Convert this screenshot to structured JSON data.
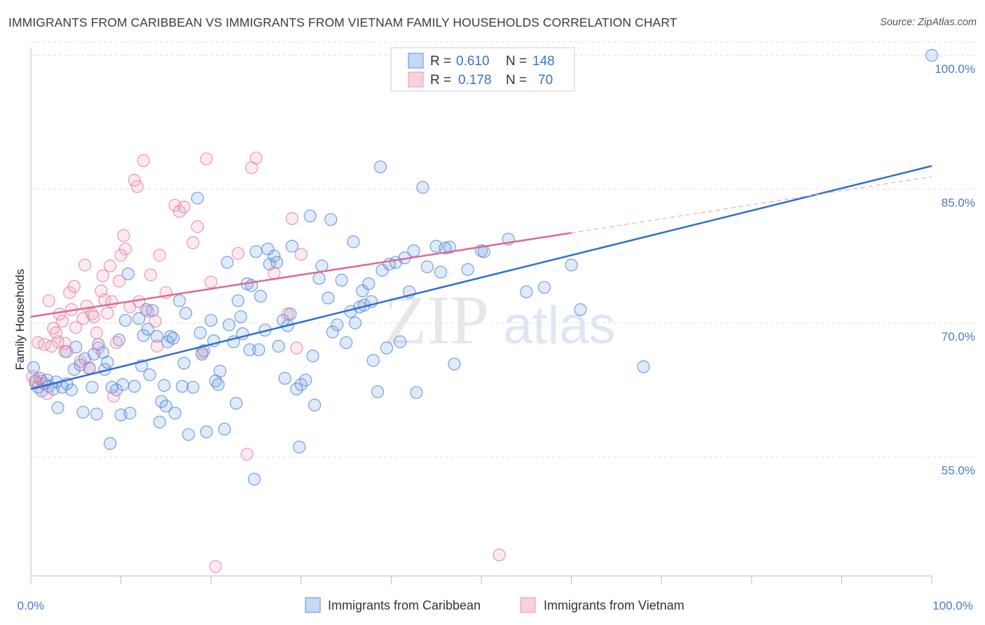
{
  "header": {
    "title": "IMMIGRANTS FROM CARIBBEAN VS IMMIGRANTS FROM VIETNAM FAMILY HOUSEHOLDS CORRELATION CHART",
    "source": "Source: ZipAtlas.com"
  },
  "watermark": {
    "zip": "ZIP",
    "atlas": "atlas"
  },
  "colors": {
    "blue": "#6d9eea",
    "blue_line": "#2f6fcc",
    "pink": "#f0a0b8",
    "pink_line": "#e06890",
    "tick_text": "#4a78c8",
    "grid": "#dddddd"
  },
  "legend": {
    "rows": [
      {
        "r_label": "R =",
        "r_value": "0.610",
        "n_label": "N =",
        "n_value": "148"
      },
      {
        "r_label": "R =",
        "r_value": "0.178",
        "n_label": "N =",
        "n_value": "70"
      }
    ]
  },
  "chart_data": {
    "type": "scatter",
    "ylabel": "Family Households",
    "xlabel": "",
    "x_tick_labels": [
      "0.0%",
      "100.0%"
    ],
    "y_tick_labels": [
      "55.0%",
      "70.0%",
      "85.0%",
      "100.0%"
    ],
    "y_ticks": [
      55,
      70,
      85,
      100
    ],
    "xlim": [
      0,
      100
    ],
    "ylim": [
      40,
      102
    ],
    "grid": true,
    "legend_position": "top-center",
    "series": [
      {
        "name": "Immigrants from Caribbean",
        "color": "#6d9eea",
        "trend": {
          "x": [
            0,
            100
          ],
          "y": [
            62.6,
            87.6
          ]
        },
        "points": [
          [
            0.3,
            65.0
          ],
          [
            0.5,
            63.5
          ],
          [
            0.8,
            62.8
          ],
          [
            1.0,
            63.8
          ],
          [
            1.2,
            62.4
          ],
          [
            1.5,
            63.2
          ],
          [
            1.8,
            63.6
          ],
          [
            2.0,
            62.9
          ],
          [
            2.5,
            62.6
          ],
          [
            2.8,
            63.4
          ],
          [
            3.0,
            60.5
          ],
          [
            3.5,
            62.8
          ],
          [
            3.8,
            66.8
          ],
          [
            4.0,
            63.2
          ],
          [
            4.5,
            62.5
          ],
          [
            4.8,
            64.8
          ],
          [
            5.0,
            67.3
          ],
          [
            5.5,
            65.3
          ],
          [
            5.8,
            60.0
          ],
          [
            6.0,
            66.0
          ],
          [
            6.5,
            64.9
          ],
          [
            6.8,
            62.8
          ],
          [
            7.0,
            66.5
          ],
          [
            7.3,
            59.8
          ],
          [
            7.5,
            67.6
          ],
          [
            8.0,
            66.7
          ],
          [
            8.2,
            64.8
          ],
          [
            8.5,
            65.6
          ],
          [
            8.8,
            56.5
          ],
          [
            9.0,
            62.8
          ],
          [
            9.5,
            62.5
          ],
          [
            9.8,
            68.1
          ],
          [
            10.0,
            59.7
          ],
          [
            10.2,
            63.1
          ],
          [
            10.5,
            70.3
          ],
          [
            10.8,
            75.5
          ],
          [
            11.0,
            59.9
          ],
          [
            11.5,
            62.9
          ],
          [
            12.0,
            70.5
          ],
          [
            12.3,
            65.2
          ],
          [
            12.5,
            68.6
          ],
          [
            12.8,
            71.5
          ],
          [
            13.0,
            69.3
          ],
          [
            13.2,
            64.2
          ],
          [
            13.5,
            71.4
          ],
          [
            14.0,
            68.5
          ],
          [
            14.3,
            58.9
          ],
          [
            14.5,
            61.2
          ],
          [
            14.8,
            63.0
          ],
          [
            15.0,
            60.7
          ],
          [
            15.2,
            67.9
          ],
          [
            15.5,
            68.5
          ],
          [
            15.8,
            68.3
          ],
          [
            16.0,
            59.9
          ],
          [
            16.5,
            72.5
          ],
          [
            16.8,
            62.9
          ],
          [
            17.0,
            65.5
          ],
          [
            17.2,
            71.1
          ],
          [
            17.5,
            57.5
          ],
          [
            18.0,
            62.8
          ],
          [
            18.5,
            84.0
          ],
          [
            18.8,
            68.9
          ],
          [
            19.0,
            66.5
          ],
          [
            19.2,
            66.9
          ],
          [
            19.5,
            57.8
          ],
          [
            20.0,
            70.3
          ],
          [
            20.3,
            68.0
          ],
          [
            20.5,
            63.5
          ],
          [
            20.8,
            63.1
          ],
          [
            21.0,
            64.6
          ],
          [
            21.5,
            58.1
          ],
          [
            21.8,
            76.8
          ],
          [
            22.0,
            69.8
          ],
          [
            22.5,
            67.9
          ],
          [
            22.8,
            61.0
          ],
          [
            23.0,
            72.5
          ],
          [
            23.3,
            70.7
          ],
          [
            23.5,
            68.8
          ],
          [
            24.0,
            74.4
          ],
          [
            24.3,
            67.0
          ],
          [
            24.5,
            74.2
          ],
          [
            24.8,
            52.5
          ],
          [
            25.0,
            78.0
          ],
          [
            25.3,
            67.0
          ],
          [
            25.5,
            73.0
          ],
          [
            26.0,
            69.2
          ],
          [
            26.3,
            78.3
          ],
          [
            26.5,
            76.6
          ],
          [
            27.0,
            77.5
          ],
          [
            27.3,
            76.8
          ],
          [
            27.5,
            67.4
          ],
          [
            28.0,
            70.3
          ],
          [
            28.2,
            63.8
          ],
          [
            28.5,
            69.7
          ],
          [
            28.8,
            71.0
          ],
          [
            29.0,
            78.6
          ],
          [
            29.5,
            62.6
          ],
          [
            29.8,
            56.1
          ],
          [
            30.0,
            63.1
          ],
          [
            30.5,
            63.6
          ],
          [
            31.0,
            82.0
          ],
          [
            31.3,
            66.3
          ],
          [
            31.5,
            60.8
          ],
          [
            32.0,
            75.0
          ],
          [
            32.3,
            76.4
          ],
          [
            33.0,
            72.8
          ],
          [
            33.3,
            81.6
          ],
          [
            33.5,
            69.0
          ],
          [
            34.0,
            69.8
          ],
          [
            34.5,
            74.8
          ],
          [
            35.0,
            67.8
          ],
          [
            35.5,
            71.3
          ],
          [
            35.8,
            79.1
          ],
          [
            36.0,
            70.0
          ],
          [
            36.5,
            71.8
          ],
          [
            36.8,
            73.6
          ],
          [
            37.0,
            72.0
          ],
          [
            37.5,
            74.4
          ],
          [
            37.8,
            72.4
          ],
          [
            38.0,
            65.8
          ],
          [
            38.5,
            62.3
          ],
          [
            38.8,
            87.5
          ],
          [
            39.0,
            75.9
          ],
          [
            39.5,
            67.2
          ],
          [
            39.8,
            76.6
          ],
          [
            40.5,
            76.8
          ],
          [
            41.0,
            67.9
          ],
          [
            41.5,
            77.3
          ],
          [
            42.0,
            73.5
          ],
          [
            42.5,
            78.1
          ],
          [
            42.8,
            62.2
          ],
          [
            43.5,
            85.2
          ],
          [
            44.0,
            76.3
          ],
          [
            45.0,
            78.6
          ],
          [
            45.5,
            75.7
          ],
          [
            46.0,
            78.4
          ],
          [
            46.5,
            78.5
          ],
          [
            47.0,
            65.4
          ],
          [
            48.5,
            76.0
          ],
          [
            50.0,
            78.1
          ],
          [
            50.3,
            78.0
          ],
          [
            53.0,
            79.4
          ],
          [
            55.0,
            73.5
          ],
          [
            57.0,
            74.0
          ],
          [
            60.0,
            76.5
          ],
          [
            61.0,
            71.5
          ],
          [
            68.0,
            65.1
          ],
          [
            100.0,
            100.0
          ]
        ]
      },
      {
        "name": "Immigrants from Vietnam",
        "color": "#f0a0b8",
        "trend": {
          "x": [
            0,
            60
          ],
          "y": [
            70.7,
            80.1
          ]
        },
        "trend_dashed": {
          "x": [
            60,
            100
          ],
          "y": [
            80.1,
            86.4
          ]
        },
        "points": [
          [
            0.2,
            64.0
          ],
          [
            0.5,
            63.3
          ],
          [
            0.8,
            67.8
          ],
          [
            1.2,
            63.5
          ],
          [
            1.5,
            67.6
          ],
          [
            1.8,
            62.1
          ],
          [
            2.0,
            72.5
          ],
          [
            2.3,
            67.4
          ],
          [
            2.5,
            69.4
          ],
          [
            2.8,
            68.9
          ],
          [
            3.0,
            67.9
          ],
          [
            3.2,
            71.0
          ],
          [
            3.5,
            70.2
          ],
          [
            3.8,
            67.7
          ],
          [
            4.0,
            66.8
          ],
          [
            4.3,
            73.4
          ],
          [
            4.5,
            71.5
          ],
          [
            4.8,
            74.1
          ],
          [
            5.0,
            69.5
          ],
          [
            5.5,
            65.7
          ],
          [
            5.8,
            70.5
          ],
          [
            6.0,
            76.5
          ],
          [
            6.2,
            71.9
          ],
          [
            6.5,
            65.0
          ],
          [
            6.8,
            71.0
          ],
          [
            7.0,
            70.7
          ],
          [
            7.3,
            68.9
          ],
          [
            7.5,
            67.2
          ],
          [
            7.8,
            73.6
          ],
          [
            8.0,
            75.3
          ],
          [
            8.2,
            72.6
          ],
          [
            8.5,
            71.1
          ],
          [
            8.8,
            76.4
          ],
          [
            9.0,
            72.4
          ],
          [
            9.2,
            61.8
          ],
          [
            9.5,
            67.8
          ],
          [
            9.8,
            74.7
          ],
          [
            10.0,
            77.6
          ],
          [
            10.3,
            79.8
          ],
          [
            10.5,
            78.3
          ],
          [
            11.0,
            71.8
          ],
          [
            11.5,
            86.0
          ],
          [
            11.8,
            85.3
          ],
          [
            12.0,
            72.4
          ],
          [
            12.5,
            88.2
          ],
          [
            13.0,
            71.3
          ],
          [
            13.3,
            75.4
          ],
          [
            13.8,
            70.2
          ],
          [
            14.0,
            67.4
          ],
          [
            14.3,
            77.6
          ],
          [
            15.0,
            73.4
          ],
          [
            16.0,
            83.2
          ],
          [
            16.5,
            82.5
          ],
          [
            17.0,
            83.0
          ],
          [
            18.0,
            79.0
          ],
          [
            18.5,
            80.8
          ],
          [
            19.0,
            66.7
          ],
          [
            19.5,
            88.4
          ],
          [
            20.0,
            74.6
          ],
          [
            20.5,
            42.7
          ],
          [
            23.0,
            77.8
          ],
          [
            24.0,
            55.3
          ],
          [
            24.5,
            87.4
          ],
          [
            25.0,
            88.5
          ],
          [
            27.0,
            75.6
          ],
          [
            28.5,
            71.0
          ],
          [
            29.0,
            81.7
          ],
          [
            29.5,
            67.2
          ],
          [
            30.0,
            77.7
          ],
          [
            52.0,
            44.0
          ]
        ]
      }
    ]
  },
  "bottom_legend": {
    "items": [
      {
        "label": "Immigrants from Caribbean"
      },
      {
        "label": "Immigrants from Vietnam"
      }
    ]
  }
}
